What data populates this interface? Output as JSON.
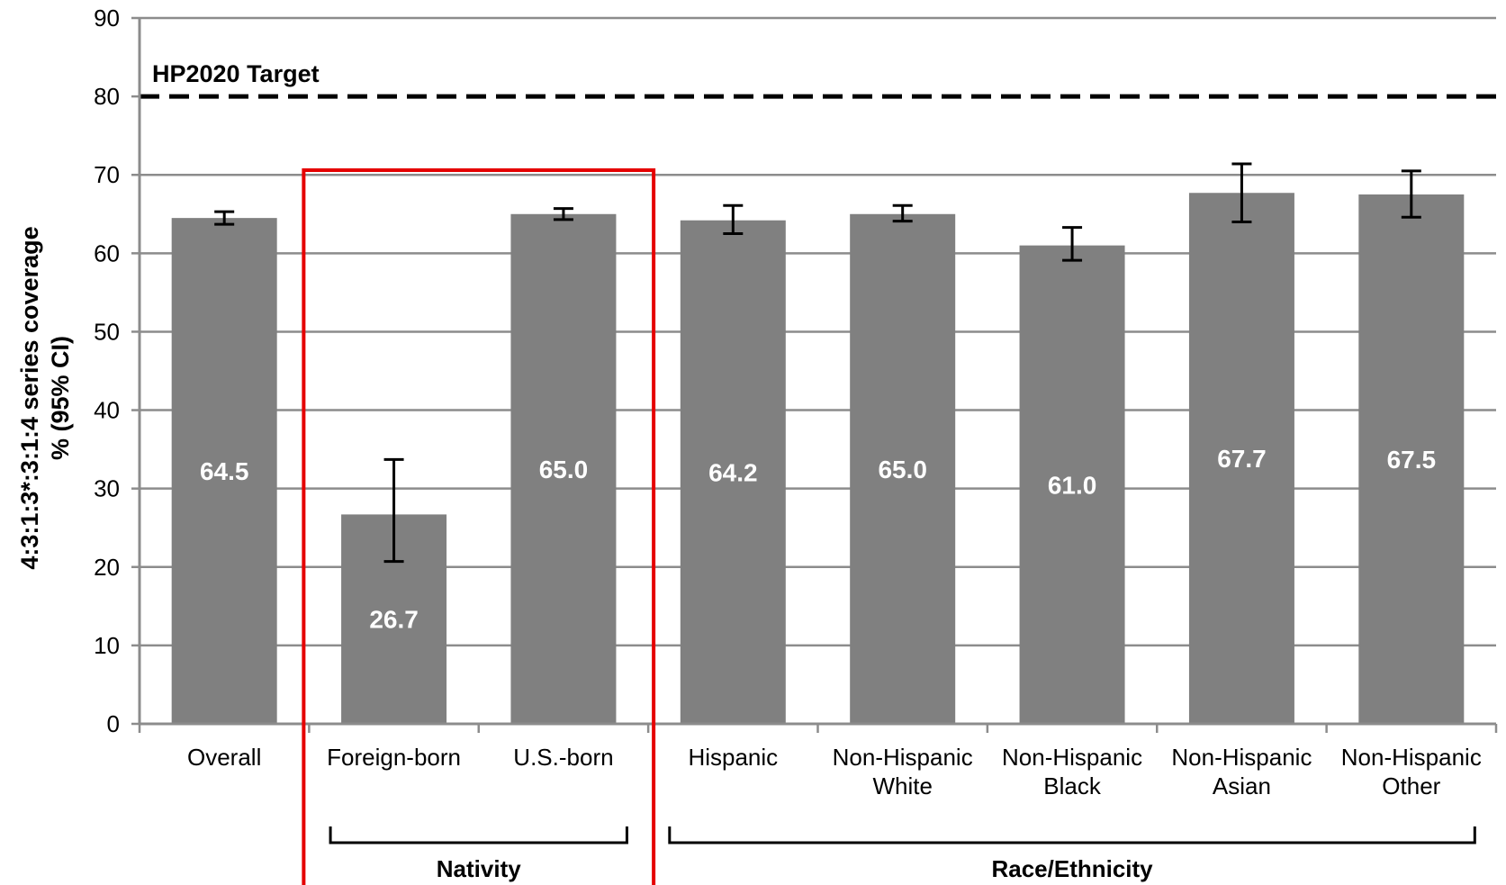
{
  "chart_data": {
    "type": "bar",
    "categories": [
      [
        "Overall"
      ],
      [
        "Foreign-born"
      ],
      [
        "U.S.-born"
      ],
      [
        "Hispanic"
      ],
      [
        "Non-Hispanic",
        "White"
      ],
      [
        "Non-Hispanic",
        "Black"
      ],
      [
        "Non-Hispanic",
        "Asian"
      ],
      [
        "Non-Hispanic",
        "Other"
      ]
    ],
    "values": [
      64.5,
      26.7,
      65.0,
      64.2,
      65.0,
      61.0,
      67.7,
      67.5
    ],
    "value_labels": [
      "64.5",
      "26.7",
      "65.0",
      "64.2",
      "65.0",
      "61.0",
      "67.7",
      "67.5"
    ],
    "error_bars": [
      [
        63.7,
        65.3
      ],
      [
        20.7,
        33.7
      ],
      [
        64.3,
        65.7
      ],
      [
        62.5,
        66.1
      ],
      [
        64.1,
        66.1
      ],
      [
        59.1,
        63.3
      ],
      [
        64.0,
        71.4
      ],
      [
        64.6,
        70.5
      ]
    ],
    "ylabel_lines": [
      "4:3:1:3*:3:1:4 series coverage",
      "% (95% CI)"
    ],
    "ylim": [
      0,
      90
    ],
    "yticks": [
      0,
      10,
      20,
      30,
      40,
      50,
      60,
      70,
      80,
      90
    ],
    "grid": true,
    "reference_line": {
      "value": 80,
      "label": "HP2020 Target",
      "style": "dashed"
    },
    "groups": [
      {
        "label": "Nativity",
        "from": 1,
        "to": 2
      },
      {
        "label": "Race/Ethnicity",
        "from": 3,
        "to": 7
      }
    ],
    "highlight_box": {
      "from": 1,
      "to": 2,
      "color": "#e50000"
    },
    "colors": {
      "bar": "#808080",
      "grid": "#8c8c8c",
      "highlight": "#e50000",
      "value_text": "#ffffff"
    }
  }
}
